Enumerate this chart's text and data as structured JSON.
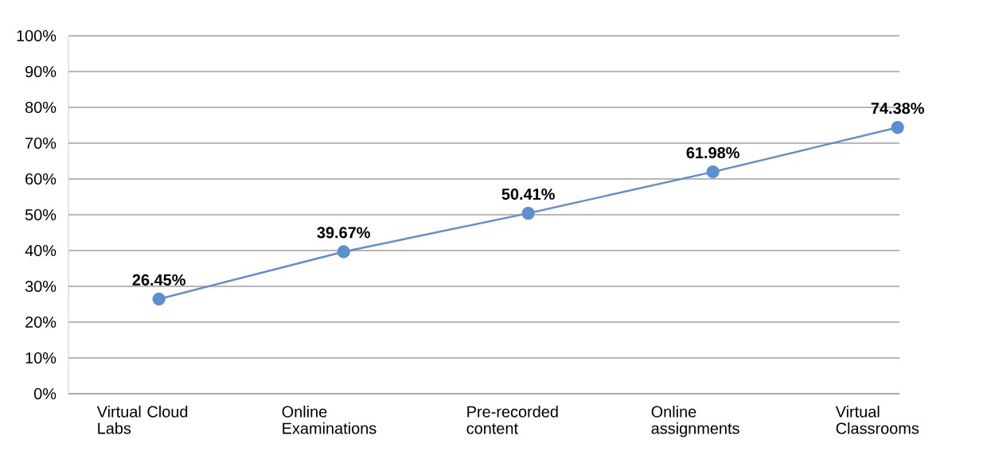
{
  "chart_data": {
    "type": "line",
    "categories": [
      "Virtual Cloud Labs",
      "Online Examinations",
      "Pre-recorded content",
      "Online assignments",
      "Virtual Classrooms"
    ],
    "values": [
      26.45,
      39.67,
      50.41,
      61.98,
      74.38
    ],
    "value_labels": [
      "26.45%",
      "39.67%",
      "50.41%",
      "61.98%",
      "74.38%"
    ],
    "color": "#5b8fd0",
    "marker": "circle",
    "line_style": "solid",
    "grid": "y",
    "ylim": [
      0,
      100
    ],
    "yticks": [
      {
        "value": 0,
        "label": "0%"
      },
      {
        "value": 10,
        "label": "10%"
      },
      {
        "value": 20,
        "label": "20%"
      },
      {
        "value": 30,
        "label": "30%"
      },
      {
        "value": 40,
        "label": "40%"
      },
      {
        "value": 50,
        "label": "50%"
      },
      {
        "value": 60,
        "label": "60%"
      },
      {
        "value": 70,
        "label": "70%"
      },
      {
        "value": 80,
        "label": "80%"
      },
      {
        "value": 90,
        "label": "90%"
      },
      {
        "value": 100,
        "label": "100%"
      }
    ]
  }
}
